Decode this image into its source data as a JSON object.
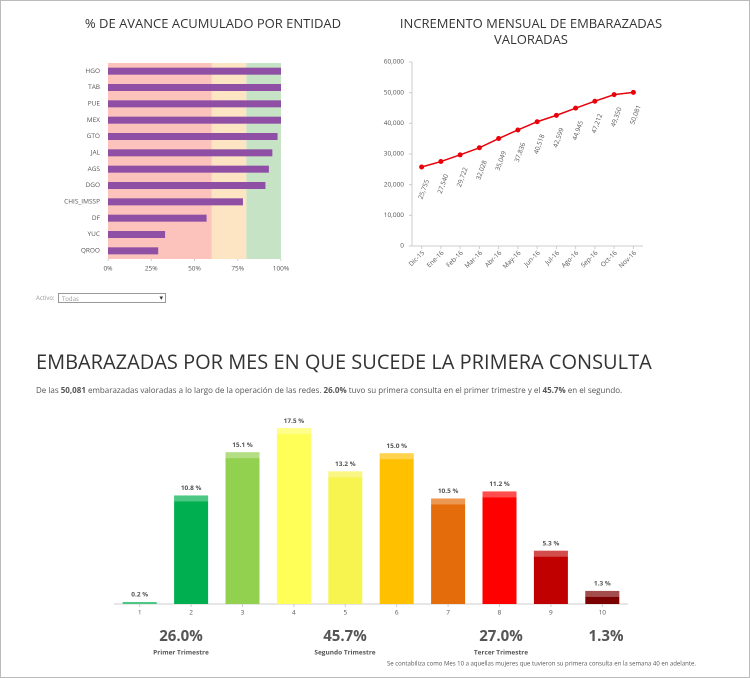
{
  "chart_data": [
    {
      "type": "barh",
      "title": "% DE AVANCE ACUMULADO POR ENTIDAD",
      "categories": [
        "HGO",
        "TAB",
        "PUE",
        "MEX",
        "GTO",
        "JAL",
        "AGS",
        "DGO",
        "CHIS_IMSSP",
        "DF",
        "YUC",
        "QROO"
      ],
      "values": [
        100,
        100,
        100,
        100,
        98,
        95,
        93,
        91,
        78,
        57,
        33,
        29
      ],
      "color": "#8e4fa4",
      "xlim": [
        0,
        100
      ],
      "xticks": [
        {
          "value": 0,
          "label": "0%"
        },
        {
          "value": 25,
          "label": "25%"
        },
        {
          "value": 50,
          "label": "50%"
        },
        {
          "value": 75,
          "label": "75%"
        },
        {
          "value": 100,
          "label": "100%"
        }
      ],
      "bands": [
        {
          "from": 0,
          "to": 60,
          "color": "#fbc3bc"
        },
        {
          "from": 60,
          "to": 80,
          "color": "#fde4c2"
        },
        {
          "from": 80,
          "to": 100,
          "color": "#c6e3c5"
        }
      ]
    },
    {
      "type": "line",
      "title": "INCREMENTO MENSUAL DE EMBARAZADAS VALORADAS",
      "categories": [
        "Dic-15",
        "Ene-16",
        "Feb-16",
        "Mar-16",
        "Abr-16",
        "May-16",
        "Jun-16",
        "Jul-16",
        "Ago-16",
        "Sep-16",
        "Oct-16",
        "Nov-16"
      ],
      "values": [
        25755,
        27540,
        29722,
        32028,
        35049,
        37836,
        40518,
        42599,
        44945,
        47212,
        49350,
        50081
      ],
      "value_labels": [
        "25,755",
        "27,540",
        "29,722",
        "32,028",
        "35,049",
        "37,836",
        "40,518",
        "42,599",
        "44,945",
        "47,212",
        "49,350",
        "50,081"
      ],
      "color": "#e8000b",
      "ylim": [
        0,
        60000
      ],
      "yticks": [
        0,
        {
          "value": 10000,
          "label": "10,000"
        },
        {
          "value": 20000,
          "label": "20,000"
        },
        {
          "value": 30000,
          "label": "30,000"
        },
        {
          "value": 40000,
          "label": "40,000"
        },
        {
          "value": 50000,
          "label": "50,000"
        },
        {
          "value": 60000,
          "label": "60,000"
        }
      ]
    },
    {
      "type": "bar",
      "title": "EMBARAZADAS POR MES EN QUE SUCEDE LA PRIMERA CONSULTA",
      "categories": [
        "1",
        "2",
        "3",
        "4",
        "5",
        "6",
        "7",
        "8",
        "9",
        "10"
      ],
      "values": [
        0.2,
        10.8,
        15.1,
        17.5,
        13.2,
        15.0,
        10.5,
        11.2,
        5.3,
        1.3
      ],
      "value_labels": [
        "0.2 %",
        "10.8 %",
        "15.1 %",
        "17.5 %",
        "13.2 %",
        "15.0 %",
        "10.5 %",
        "11.2 %",
        "5.3 %",
        "1.3 %"
      ],
      "colors": [
        "#00b050",
        "#00b050",
        "#92d050",
        "#ffff57",
        "#f7f34f",
        "#ffc000",
        "#e46c0a",
        "#ff0000",
        "#c00000",
        "#7b0000"
      ],
      "ylim": [
        0,
        20
      ]
    }
  ],
  "filter": {
    "label": "Activo:",
    "value": "Todas"
  },
  "intro": [
    "De las ",
    "50,081",
    " embarazadas valoradas a lo largo de la operación de las redes. ",
    "26.0%",
    " tuvo su primera consulta en el primer trimestre y el ",
    "45.7%",
    " en el segundo."
  ],
  "trimesters": [
    {
      "value": "26.0%",
      "label": "Primer Trimestre"
    },
    {
      "value": "45.7%",
      "label": "Segundo Trimestre"
    },
    {
      "value": "27.0%",
      "label": "Tercer Trimestre"
    },
    {
      "value": "1.3%"
    }
  ],
  "footnote": "Se contabiliza como Mes 10 a aquellas mujeres que tuvieron su primera consulta en la semana 40 en adelante."
}
